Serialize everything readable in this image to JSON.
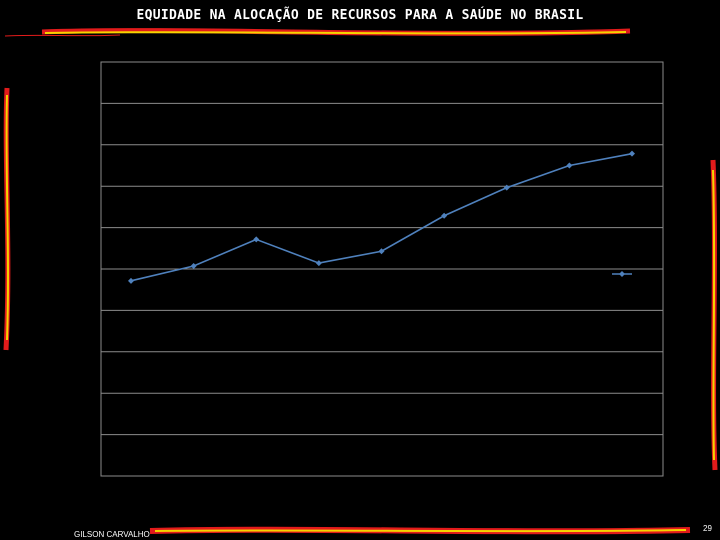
{
  "slide": {
    "title": "EQUIDADE NA ALOCAÇÃO DE RECURSOS PARA A SAÚDE NO BRASIL",
    "author": "GILSON CARVALHO",
    "page_number": "29"
  },
  "colors": {
    "background": "#000000",
    "title_text": "#ffffff",
    "decor_red": "#e21b1b",
    "decor_yellow": "#f5d400",
    "plot_border": "#8c8c8c",
    "gridline": "#8c8c8c",
    "series_line": "#4f81bd"
  },
  "chart_data": {
    "type": "line",
    "title": "",
    "xlabel": "",
    "ylabel": "",
    "categories": [
      "",
      "",
      "",
      "",
      "",
      "",
      "",
      "",
      ""
    ],
    "series": [
      {
        "values": [
          6.6,
          7.1,
          8.0,
          7.2,
          7.6,
          8.8,
          9.75,
          10.5,
          10.9
        ]
      }
    ],
    "ylim": [
      0,
      14
    ],
    "grid": true,
    "legend": "right"
  }
}
